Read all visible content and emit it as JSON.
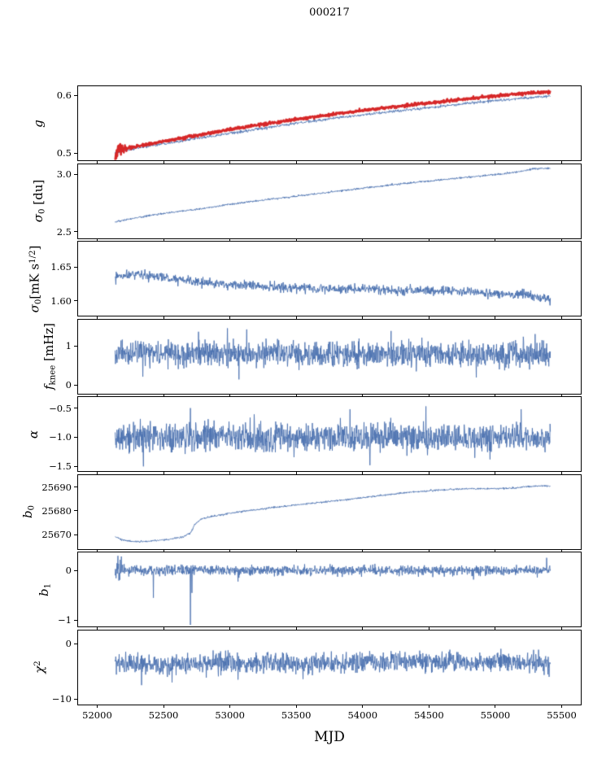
{
  "chart_data": {
    "type": "line",
    "title": "000217",
    "xlabel": "MJD",
    "xlim": [
      51850,
      55650
    ],
    "x_data_range": [
      52130,
      55420
    ],
    "xticks": [
      52000,
      52500,
      53000,
      53500,
      54000,
      54500,
      55000,
      55500
    ],
    "xtick_labels": [
      "52000",
      "52500",
      "53000",
      "53500",
      "54000",
      "54500",
      "55000",
      "55500"
    ],
    "legend": "none",
    "grid": false,
    "panels": [
      {
        "id": "g",
        "ylabel_parts": [
          {
            "t": "g",
            "it": true
          }
        ],
        "ylim": [
          0.488,
          0.616
        ],
        "yticks": [
          0.5,
          0.6
        ],
        "ytick_labels": [
          "0.5",
          "0.6"
        ],
        "series": [
          {
            "name": "gain-raw",
            "color": "#4c72b0",
            "width": 0.9,
            "noise": 0.0012,
            "trend": [
              [
                52130,
                0.501
              ],
              [
                52300,
                0.509
              ],
              [
                52500,
                0.517
              ],
              [
                52700,
                0.524
              ],
              [
                52900,
                0.531
              ],
              [
                53100,
                0.538
              ],
              [
                53300,
                0.545
              ],
              [
                53500,
                0.552
              ],
              [
                53700,
                0.558
              ],
              [
                53900,
                0.564
              ],
              [
                54100,
                0.569
              ],
              [
                54300,
                0.574
              ],
              [
                54500,
                0.579
              ],
              [
                54700,
                0.584
              ],
              [
                54900,
                0.589
              ],
              [
                55100,
                0.593
              ],
              [
                55250,
                0.596
              ],
              [
                55420,
                0.599
              ]
            ]
          },
          {
            "name": "gain-smoothed",
            "color": "#d62728",
            "width": 2.4,
            "noise": 0.0013,
            "burst": {
              "until": 52260,
              "amp": 0.009
            },
            "trend": [
              [
                52130,
                0.503
              ],
              [
                52300,
                0.512
              ],
              [
                52500,
                0.521
              ],
              [
                52700,
                0.529
              ],
              [
                52900,
                0.537
              ],
              [
                53100,
                0.545
              ],
              [
                53300,
                0.552
              ],
              [
                53500,
                0.559
              ],
              [
                53700,
                0.565
              ],
              [
                53900,
                0.571
              ],
              [
                54100,
                0.577
              ],
              [
                54300,
                0.582
              ],
              [
                54500,
                0.587
              ],
              [
                54700,
                0.592
              ],
              [
                54900,
                0.597
              ],
              [
                55100,
                0.601
              ],
              [
                55250,
                0.604
              ],
              [
                55420,
                0.607
              ]
            ]
          }
        ]
      },
      {
        "id": "sigma0-du",
        "ylabel_parts": [
          {
            "t": "σ",
            "it": true
          },
          {
            "t": "0",
            "sub": true
          },
          {
            "t": " [du]"
          }
        ],
        "ylim": [
          2.444,
          3.09
        ],
        "yticks": [
          2.5,
          3.0
        ],
        "ytick_labels": [
          "2.5",
          "3.0"
        ],
        "series": [
          {
            "name": "sigma0-du",
            "color": "#4c72b0",
            "width": 1,
            "noise": 0.004,
            "trend": [
              [
                52130,
                2.585
              ],
              [
                52250,
                2.615
              ],
              [
                52400,
                2.645
              ],
              [
                52600,
                2.678
              ],
              [
                52800,
                2.705
              ],
              [
                53000,
                2.742
              ],
              [
                53250,
                2.778
              ],
              [
                53500,
                2.812
              ],
              [
                53750,
                2.848
              ],
              [
                54000,
                2.882
              ],
              [
                54250,
                2.915
              ],
              [
                54500,
                2.945
              ],
              [
                54750,
                2.972
              ],
              [
                55000,
                3.0
              ],
              [
                55150,
                3.02
              ],
              [
                55300,
                3.052
              ],
              [
                55420,
                3.055
              ]
            ]
          }
        ]
      },
      {
        "id": "sigma0-mk",
        "ylabel_parts": [
          {
            "t": "σ",
            "it": true
          },
          {
            "t": "0",
            "sub": true
          },
          {
            "t": "[mK s"
          },
          {
            "t": "1/2",
            "sup": true
          },
          {
            "t": "]"
          }
        ],
        "ylim": [
          1.578,
          1.688
        ],
        "yticks": [
          1.6,
          1.65
        ],
        "ytick_labels": [
          "1.60",
          "1.65"
        ],
        "series": [
          {
            "name": "sigma0-mk",
            "color": "#4c72b0",
            "width": 1,
            "noise": 0.0035,
            "trend": [
              [
                52130,
                1.634
              ],
              [
                52250,
                1.641
              ],
              [
                52400,
                1.637
              ],
              [
                52600,
                1.631
              ],
              [
                52800,
                1.627
              ],
              [
                53000,
                1.624
              ],
              [
                53250,
                1.621
              ],
              [
                53500,
                1.619
              ],
              [
                53750,
                1.618
              ],
              [
                54000,
                1.617
              ],
              [
                54250,
                1.616
              ],
              [
                54500,
                1.616
              ],
              [
                54750,
                1.614
              ],
              [
                55000,
                1.611
              ],
              [
                55200,
                1.609
              ],
              [
                55350,
                1.604
              ],
              [
                55420,
                1.601
              ]
            ]
          }
        ]
      },
      {
        "id": "fknee",
        "ylabel_parts": [
          {
            "t": "f",
            "it": true
          },
          {
            "t": "knee",
            "sub": true
          },
          {
            "t": " [mHz]"
          }
        ],
        "ylim": [
          -0.22,
          1.69
        ],
        "yticks": [
          0,
          1
        ],
        "ytick_labels": [
          "0",
          "1"
        ],
        "series": [
          {
            "name": "fknee",
            "color": "#4c72b0",
            "width": 0.9,
            "noise": 0.16,
            "n": 1400,
            "trend": [
              [
                52130,
                0.82
              ],
              [
                53500,
                0.8
              ],
              [
                55420,
                0.8
              ]
            ],
            "spikes": [
              {
                "x": 52340,
                "y": 0.22
              },
              {
                "x": 52760,
                "y": 1.38
              },
              {
                "x": 52980,
                "y": 1.47
              },
              {
                "x": 53065,
                "y": 0.15
              },
              {
                "x": 53125,
                "y": 1.44
              },
              {
                "x": 54215,
                "y": 1.4
              },
              {
                "x": 54860,
                "y": 0.2
              },
              {
                "x": 55305,
                "y": 1.32
              }
            ]
          }
        ]
      },
      {
        "id": "alpha",
        "ylabel_parts": [
          {
            "t": "α",
            "it": true
          }
        ],
        "ylim": [
          -1.58,
          -0.31
        ],
        "yticks": [
          -0.5,
          -1.0,
          -1.5
        ],
        "ytick_labels": [
          "−0.5",
          "−1.0",
          "−1.5"
        ],
        "series": [
          {
            "name": "alpha",
            "color": "#4c72b0",
            "width": 0.9,
            "noise": 0.125,
            "n": 1400,
            "trend": [
              [
                52130,
                -1.0
              ],
              [
                55420,
                -1.0
              ]
            ],
            "spikes": [
              {
                "x": 52345,
                "y": -1.5
              },
              {
                "x": 52700,
                "y": -0.5
              },
              {
                "x": 53905,
                "y": -0.52
              },
              {
                "x": 54055,
                "y": -1.48
              },
              {
                "x": 54480,
                "y": -0.47
              },
              {
                "x": 55200,
                "y": -0.52
              }
            ]
          }
        ]
      },
      {
        "id": "b0",
        "ylabel_parts": [
          {
            "t": "b",
            "it": true
          },
          {
            "t": "0",
            "sub": true
          }
        ],
        "ylim": [
          25664,
          25695.3
        ],
        "yticks": [
          25670,
          25680,
          25690
        ],
        "ytick_labels": [
          "25670",
          "25680",
          "25690"
        ],
        "series": [
          {
            "name": "b0",
            "color": "#4c72b0",
            "width": 1,
            "noise": 0.18,
            "trend": [
              [
                52130,
                25669.3
              ],
              [
                52180,
                25668.0
              ],
              [
                52250,
                25667.3
              ],
              [
                52350,
                25667.2
              ],
              [
                52450,
                25667.7
              ],
              [
                52550,
                25668.2
              ],
              [
                52650,
                25669.3
              ],
              [
                52700,
                25670.8
              ],
              [
                52730,
                25674.3
              ],
              [
                52780,
                25676.8
              ],
              [
                52850,
                25677.7
              ],
              [
                53000,
                25679.2
              ],
              [
                53150,
                25680.4
              ],
              [
                53300,
                25681.4
              ],
              [
                53500,
                25682.7
              ],
              [
                53700,
                25683.9
              ],
              [
                53900,
                25685.1
              ],
              [
                54100,
                25686.4
              ],
              [
                54300,
                25687.7
              ],
              [
                54500,
                25688.7
              ],
              [
                54650,
                25689.2
              ],
              [
                54800,
                25689.5
              ],
              [
                55000,
                25689.6
              ],
              [
                55150,
                25689.8
              ],
              [
                55250,
                25690.5
              ],
              [
                55350,
                25690.8
              ],
              [
                55420,
                25690.7
              ]
            ]
          }
        ]
      },
      {
        "id": "b1",
        "ylabel_parts": [
          {
            "t": "b",
            "it": true
          },
          {
            "t": "1",
            "sub": true
          }
        ],
        "ylim": [
          -1.13,
          0.37
        ],
        "yticks": [
          0,
          -1
        ],
        "ytick_labels": [
          "0",
          "−1"
        ],
        "series": [
          {
            "name": "b1",
            "color": "#4c72b0",
            "width": 0.9,
            "noise": 0.05,
            "n": 1400,
            "burst": {
              "until": 52260,
              "amp": 0.1
            },
            "trend": [
              [
                52130,
                0.01
              ],
              [
                55420,
                0.0
              ]
            ],
            "spikes": [
              {
                "x": 52150,
                "y": 0.3
              },
              {
                "x": 52158,
                "y": -0.2
              },
              {
                "x": 52168,
                "y": 0.22
              },
              {
                "x": 52420,
                "y": -0.55
              },
              {
                "x": 52700,
                "y": -1.1
              },
              {
                "x": 52710,
                "y": -0.45
              },
              {
                "x": 53060,
                "y": -0.22
              },
              {
                "x": 54840,
                "y": -0.18
              },
              {
                "x": 55392,
                "y": 0.26
              }
            ]
          }
        ]
      },
      {
        "id": "chi2",
        "ylabel_parts": [
          {
            "t": "χ",
            "it": true
          },
          {
            "t": "2",
            "sup": true
          }
        ],
        "ylim": [
          -10.9,
          2.47
        ],
        "yticks": [
          0,
          -10
        ],
        "ytick_labels": [
          "0",
          "−10"
        ],
        "series": [
          {
            "name": "chi2",
            "color": "#4c72b0",
            "width": 0.9,
            "noise": 0.85,
            "n": 1400,
            "trend": [
              [
                52130,
                -3.3
              ],
              [
                52400,
                -3.8
              ],
              [
                52700,
                -3.6
              ],
              [
                53000,
                -3.3
              ],
              [
                53500,
                -3.5
              ],
              [
                54000,
                -3.2
              ],
              [
                54500,
                -3.1
              ],
              [
                55000,
                -3.3
              ],
              [
                55420,
                -3.2
              ]
            ],
            "spikes": [
              {
                "x": 52330,
                "y": -7.4
              },
              {
                "x": 52560,
                "y": -6.9
              },
              {
                "x": 53060,
                "y": -6.4
              },
              {
                "x": 53550,
                "y": -6.3
              },
              {
                "x": 54660,
                "y": -1.0
              },
              {
                "x": 55330,
                "y": -1.0
              },
              {
                "x": 55410,
                "y": -5.9
              }
            ]
          }
        ]
      }
    ]
  }
}
